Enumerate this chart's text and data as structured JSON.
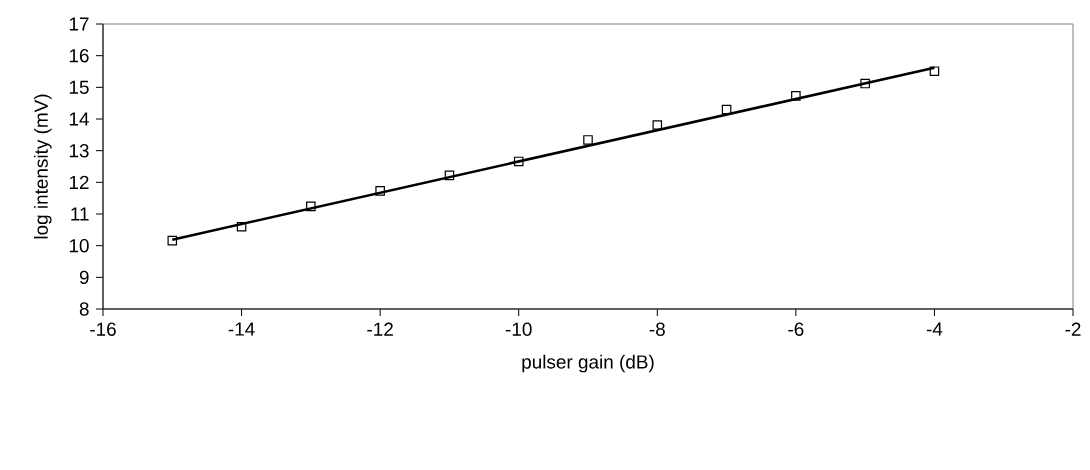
{
  "chart_data": {
    "type": "scatter",
    "xlabel": "pulser gain (dB)",
    "ylabel": "log intensity (mV)",
    "x": [
      -15,
      -14,
      -13,
      -12,
      -11,
      -10,
      -9,
      -8,
      -7,
      -6,
      -5,
      -4
    ],
    "series": [
      {
        "color": "#000000",
        "marker": "square",
        "values": [
          10.16,
          10.6,
          11.24,
          11.73,
          12.22,
          12.66,
          13.34,
          13.81,
          14.3,
          14.73,
          15.12,
          15.51
        ]
      },
      {
        "type": "line",
        "color": "#000000",
        "marker": "none",
        "x": [
          -15,
          -4
        ],
        "values": [
          10.19,
          15.62
        ]
      }
    ],
    "xlim": [
      -16,
      -2
    ],
    "xticks": [
      -16,
      -14,
      -12,
      -10,
      -8,
      -6,
      -4,
      -2
    ],
    "ylim": [
      8,
      17
    ],
    "yticks": [
      8,
      9,
      10,
      11,
      12,
      13,
      14,
      15,
      16,
      17
    ],
    "grid": false
  }
}
